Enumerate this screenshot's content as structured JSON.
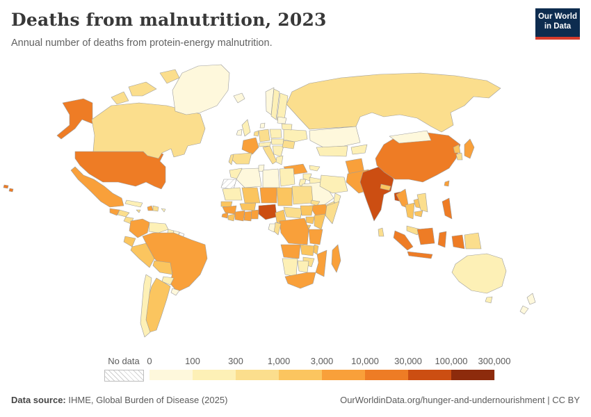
{
  "header": {
    "title": "Deaths from malnutrition, 2023",
    "subtitle": "Annual number of deaths from protein-energy malnutrition."
  },
  "logo": {
    "line1": "Our World",
    "line2": "in Data",
    "bg": "#0d2c4f",
    "accent": "#d73c2c"
  },
  "legend": {
    "no_data_label": "No data",
    "ticks": [
      "0",
      "100",
      "300",
      "1,000",
      "3,000",
      "10,000",
      "30,000",
      "100,000",
      "300,000"
    ],
    "bins": [
      {
        "range": "0–100",
        "color": "#FEF8DC"
      },
      {
        "range": "100–300",
        "color": "#FDF0B6"
      },
      {
        "range": "300–1,000",
        "color": "#FBDE8D"
      },
      {
        "range": "1,000–3,000",
        "color": "#FBC55F"
      },
      {
        "range": "3,000–10,000",
        "color": "#F9A03A"
      },
      {
        "range": "10,000–30,000",
        "color": "#EE7C25"
      },
      {
        "range": "30,000–100,000",
        "color": "#CC4E12"
      },
      {
        "range": "100,000–300,000",
        "color": "#8D2B0C"
      }
    ],
    "no_data_hatch_color": "#cfcfcf"
  },
  "footer": {
    "source_label": "Data source:",
    "source_text": " IHME, Global Burden of Disease (2025)",
    "link": "OurWorldinData.org/hunger-and-undernourishment | CC BY"
  },
  "chart_data": {
    "type": "choropleth",
    "title": "Deaths from malnutrition, 2023",
    "subtitle": "Annual number of deaths from protein-energy malnutrition.",
    "unit": "deaths",
    "year": 2023,
    "legend_bins": [
      "0–100",
      "100–300",
      "300–1,000",
      "1,000–3,000",
      "3,000–10,000",
      "10,000–30,000",
      "30,000–100,000",
      "100,000–300,000"
    ],
    "note": "bin 0 = no data",
    "countries": [
      {
        "name": "United States",
        "bin": 6
      },
      {
        "name": "Canada",
        "bin": 3
      },
      {
        "name": "Greenland",
        "bin": 1
      },
      {
        "name": "Mexico",
        "bin": 5
      },
      {
        "name": "Guatemala",
        "bin": 5
      },
      {
        "name": "Honduras",
        "bin": 3
      },
      {
        "name": "Nicaragua",
        "bin": 3
      },
      {
        "name": "Panama",
        "bin": 2
      },
      {
        "name": "Cuba",
        "bin": 2
      },
      {
        "name": "Haiti",
        "bin": 5
      },
      {
        "name": "Dominican Republic",
        "bin": 3
      },
      {
        "name": "Jamaica",
        "bin": 3
      },
      {
        "name": "Puerto Rico",
        "bin": 2
      },
      {
        "name": "Colombia",
        "bin": 5
      },
      {
        "name": "Venezuela",
        "bin": 2
      },
      {
        "name": "Guyana",
        "bin": 2
      },
      {
        "name": "Suriname",
        "bin": 1
      },
      {
        "name": "French Guiana",
        "bin": 0
      },
      {
        "name": "Ecuador",
        "bin": 4
      },
      {
        "name": "Peru",
        "bin": 4
      },
      {
        "name": "Brazil",
        "bin": 5
      },
      {
        "name": "Bolivia",
        "bin": 4
      },
      {
        "name": "Paraguay",
        "bin": 2
      },
      {
        "name": "Uruguay",
        "bin": 1
      },
      {
        "name": "Argentina",
        "bin": 4
      },
      {
        "name": "Chile",
        "bin": 2
      },
      {
        "name": "Iceland",
        "bin": 1
      },
      {
        "name": "United Kingdom",
        "bin": 2
      },
      {
        "name": "Ireland",
        "bin": 1
      },
      {
        "name": "Norway",
        "bin": 1
      },
      {
        "name": "Sweden",
        "bin": 2
      },
      {
        "name": "Finland",
        "bin": 2
      },
      {
        "name": "Denmark",
        "bin": 1
      },
      {
        "name": "Germany",
        "bin": 3
      },
      {
        "name": "Netherlands",
        "bin": 3
      },
      {
        "name": "France",
        "bin": 5
      },
      {
        "name": "Spain",
        "bin": 3
      },
      {
        "name": "Portugal",
        "bin": 3
      },
      {
        "name": "Italy",
        "bin": 3
      },
      {
        "name": "Austria",
        "bin": 2
      },
      {
        "name": "Poland",
        "bin": 2
      },
      {
        "name": "Hungary",
        "bin": 2
      },
      {
        "name": "Serbia",
        "bin": 2
      },
      {
        "name": "Greece",
        "bin": 2
      },
      {
        "name": "Romania",
        "bin": 3
      },
      {
        "name": "Ukraine",
        "bin": 2
      },
      {
        "name": "Belarus",
        "bin": 2
      },
      {
        "name": "Lithuania",
        "bin": 1
      },
      {
        "name": "Russia",
        "bin": 3
      },
      {
        "name": "Turkey",
        "bin": 5
      },
      {
        "name": "Syria",
        "bin": 2
      },
      {
        "name": "Iraq",
        "bin": 2
      },
      {
        "name": "Jordan",
        "bin": 2
      },
      {
        "name": "Saudi Arabia",
        "bin": 1
      },
      {
        "name": "Yemen",
        "bin": 3
      },
      {
        "name": "Oman",
        "bin": 2
      },
      {
        "name": "Iran",
        "bin": 2
      },
      {
        "name": "Azerbaijan",
        "bin": 2
      },
      {
        "name": "Kazakhstan",
        "bin": 1
      },
      {
        "name": "Uzbekistan",
        "bin": 2
      },
      {
        "name": "Tajikistan",
        "bin": 2
      },
      {
        "name": "Afghanistan",
        "bin": 5
      },
      {
        "name": "Pakistan",
        "bin": 5
      },
      {
        "name": "India",
        "bin": 7
      },
      {
        "name": "Nepal",
        "bin": 4
      },
      {
        "name": "Bangladesh",
        "bin": 7
      },
      {
        "name": "Sri Lanka",
        "bin": 3
      },
      {
        "name": "Myanmar",
        "bin": 5
      },
      {
        "name": "Thailand",
        "bin": 4
      },
      {
        "name": "Laos",
        "bin": 4
      },
      {
        "name": "Vietnam",
        "bin": 3
      },
      {
        "name": "Cambodia",
        "bin": 4
      },
      {
        "name": "China",
        "bin": 6
      },
      {
        "name": "Mongolia",
        "bin": 1
      },
      {
        "name": "Taiwan",
        "bin": 5
      },
      {
        "name": "Japan",
        "bin": 5
      },
      {
        "name": "North Korea",
        "bin": 4
      },
      {
        "name": "South Korea",
        "bin": 3
      },
      {
        "name": "Philippines",
        "bin": 6
      },
      {
        "name": "Malaysia",
        "bin": 3
      },
      {
        "name": "Indonesia",
        "bin": 6
      },
      {
        "name": "Papua New Guinea",
        "bin": 3
      },
      {
        "name": "Australia",
        "bin": 2
      },
      {
        "name": "New Zealand",
        "bin": 1
      },
      {
        "name": "Morocco",
        "bin": 2
      },
      {
        "name": "Western Sahara",
        "bin": 0
      },
      {
        "name": "Algeria",
        "bin": 1
      },
      {
        "name": "Tunisia",
        "bin": 1
      },
      {
        "name": "Libya",
        "bin": 1
      },
      {
        "name": "Egypt",
        "bin": 2
      },
      {
        "name": "Mauritania",
        "bin": 2
      },
      {
        "name": "Mali",
        "bin": 4
      },
      {
        "name": "Niger",
        "bin": 5
      },
      {
        "name": "Chad",
        "bin": 4
      },
      {
        "name": "Sudan",
        "bin": 3
      },
      {
        "name": "Eritrea",
        "bin": 3
      },
      {
        "name": "Djibouti",
        "bin": 3
      },
      {
        "name": "Ethiopia",
        "bin": 5
      },
      {
        "name": "Somalia",
        "bin": 3
      },
      {
        "name": "Senegal",
        "bin": 4
      },
      {
        "name": "Guinea",
        "bin": 5
      },
      {
        "name": "Sierra Leone",
        "bin": 5
      },
      {
        "name": "Liberia",
        "bin": 4
      },
      {
        "name": "Ivory Coast",
        "bin": 5
      },
      {
        "name": "Ghana",
        "bin": 5
      },
      {
        "name": "Benin",
        "bin": 5
      },
      {
        "name": "Burkina Faso",
        "bin": 4
      },
      {
        "name": "Nigeria",
        "bin": 7
      },
      {
        "name": "Cameroon",
        "bin": 4
      },
      {
        "name": "Central African Republic",
        "bin": 3
      },
      {
        "name": "South Sudan",
        "bin": 4
      },
      {
        "name": "Uganda",
        "bin": 4
      },
      {
        "name": "Kenya",
        "bin": 4
      },
      {
        "name": "Rwanda",
        "bin": 4
      },
      {
        "name": "DR Congo",
        "bin": 5
      },
      {
        "name": "Congo",
        "bin": 3
      },
      {
        "name": "Gabon",
        "bin": 1
      },
      {
        "name": "Tanzania",
        "bin": 5
      },
      {
        "name": "Angola",
        "bin": 5
      },
      {
        "name": "Zambia",
        "bin": 4
      },
      {
        "name": "Malawi",
        "bin": 4
      },
      {
        "name": "Mozambique",
        "bin": 5
      },
      {
        "name": "Zimbabwe",
        "bin": 3
      },
      {
        "name": "Namibia",
        "bin": 2
      },
      {
        "name": "Botswana",
        "bin": 2
      },
      {
        "name": "South Africa",
        "bin": 5
      },
      {
        "name": "Madagascar",
        "bin": 5
      }
    ]
  }
}
